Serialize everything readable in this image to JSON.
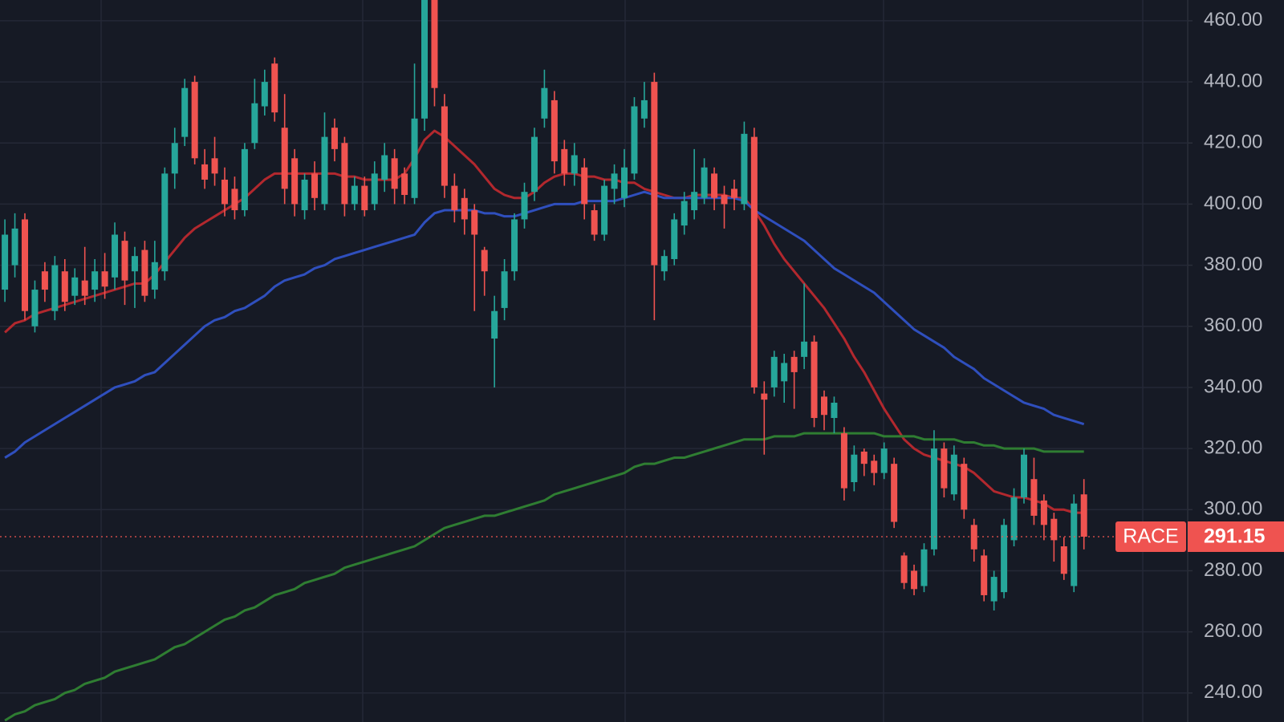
{
  "chart_data": {
    "type": "candlestick",
    "symbol": "RACE",
    "up_color": "#26a69a",
    "down_color": "#ef5350",
    "grid": true,
    "ylim": [
      230.5,
      466.8
    ],
    "yticks": [
      {
        "value": 240,
        "label": "240.00"
      },
      {
        "value": 260,
        "label": "260.00"
      },
      {
        "value": 280,
        "label": "280.00"
      },
      {
        "value": 300,
        "label": "300.00"
      },
      {
        "value": 320,
        "label": "320.00"
      },
      {
        "value": 340,
        "label": "340.00"
      },
      {
        "value": 360,
        "label": "360.00"
      },
      {
        "value": 380,
        "label": "380.00"
      },
      {
        "value": 400,
        "label": "400.00"
      },
      {
        "value": 420,
        "label": "420.00"
      },
      {
        "value": 440,
        "label": "440.00"
      },
      {
        "value": 460,
        "label": "460.00"
      }
    ],
    "open": [
      372,
      380,
      395,
      360,
      378,
      365,
      378,
      370,
      375,
      372,
      378,
      376,
      388,
      378,
      385,
      372,
      378,
      410,
      422,
      440,
      413,
      415,
      408,
      405,
      398,
      420,
      432,
      446,
      425,
      415,
      398,
      410,
      400,
      425,
      420,
      400,
      406,
      400,
      408,
      415,
      410,
      402,
      428,
      470,
      432,
      406,
      402,
      398,
      385,
      356,
      366,
      378,
      395,
      404,
      428,
      434,
      418,
      410,
      412,
      398,
      390,
      405,
      402,
      410,
      428,
      440,
      378,
      382,
      393,
      398,
      402,
      410,
      403,
      405,
      400,
      422,
      338,
      340,
      342,
      350,
      350,
      355,
      337,
      330,
      325,
      309,
      319,
      316,
      312,
      315,
      285,
      280,
      275,
      287,
      320,
      305,
      315,
      295,
      285,
      270,
      273,
      290,
      304,
      310,
      303,
      297,
      288,
      275,
      305
    ],
    "high": [
      395,
      397,
      397,
      375,
      381,
      383,
      382,
      379,
      386,
      382,
      384,
      394,
      391,
      386,
      388,
      388,
      412,
      425,
      441,
      442,
      418,
      422,
      412,
      409,
      420,
      441,
      444,
      448,
      436,
      418,
      410,
      414,
      430,
      428,
      422,
      409,
      409,
      414,
      420,
      418,
      412,
      446,
      472,
      472,
      436,
      410,
      405,
      400,
      386,
      370,
      382,
      397,
      407,
      425,
      444,
      437,
      421,
      420,
      415,
      400,
      408,
      413,
      418,
      435,
      440,
      443,
      385,
      397,
      404,
      418,
      415,
      412,
      406,
      408,
      427,
      425,
      342,
      352,
      351,
      352,
      374,
      357,
      339,
      337,
      327,
      321,
      320,
      318,
      322,
      317,
      286,
      282,
      289,
      326,
      322,
      321,
      317,
      297,
      287,
      280,
      297,
      307,
      320,
      317,
      305,
      299,
      291,
      305,
      310
    ],
    "low": [
      368,
      376,
      362,
      358,
      368,
      362,
      365,
      367,
      367,
      368,
      369,
      372,
      367,
      366,
      368,
      369,
      375,
      405,
      419,
      413,
      405,
      406,
      396,
      395,
      396,
      418,
      429,
      427,
      400,
      396,
      395,
      398,
      398,
      414,
      396,
      398,
      396,
      398,
      404,
      400,
      400,
      400,
      424,
      432,
      402,
      394,
      390,
      365,
      370,
      340,
      362,
      375,
      392,
      401,
      425,
      410,
      406,
      406,
      395,
      388,
      388,
      400,
      399,
      408,
      425,
      362,
      375,
      380,
      390,
      395,
      400,
      398,
      392,
      398,
      398,
      338,
      318,
      337,
      335,
      333,
      346,
      327,
      326,
      325,
      303,
      306,
      311,
      308,
      310,
      294,
      274,
      272,
      273,
      285,
      304,
      303,
      297,
      283,
      270,
      267,
      271,
      288,
      302,
      295,
      290,
      283,
      277,
      273,
      287
    ],
    "close": [
      390,
      392,
      365,
      372,
      372,
      380,
      368,
      376,
      370,
      378,
      373,
      390,
      375,
      383,
      370,
      381,
      410,
      420,
      438,
      415,
      408,
      410,
      400,
      398,
      418,
      433,
      440,
      430,
      405,
      400,
      408,
      402,
      422,
      418,
      400,
      406,
      398,
      410,
      416,
      405,
      403,
      428,
      470,
      438,
      406,
      398,
      395,
      390,
      378,
      365,
      378,
      395,
      404,
      422,
      438,
      414,
      410,
      416,
      400,
      390,
      406,
      410,
      412,
      432,
      434,
      380,
      383,
      395,
      401,
      404,
      412,
      402,
      400,
      402,
      423,
      340,
      336,
      350,
      348,
      345,
      355,
      330,
      331,
      335,
      307,
      318,
      315,
      312,
      320,
      296,
      276,
      274,
      287,
      320,
      307,
      318,
      300,
      287,
      272,
      278,
      295,
      304,
      318,
      298,
      295,
      290,
      279,
      302,
      291.15
    ],
    "series": [
      {
        "color": "#b2282e",
        "values": [
          358,
          361,
          362,
          364,
          365,
          366,
          367,
          368,
          369,
          370,
          371,
          372,
          373,
          374,
          374,
          377,
          381,
          385,
          389,
          392,
          394,
          396,
          398,
          400,
          402,
          405,
          408,
          410,
          410,
          410,
          410,
          410,
          410,
          410,
          409,
          409,
          408,
          408,
          408,
          408,
          410,
          415,
          421,
          424,
          422,
          419,
          416,
          413,
          409,
          405,
          403,
          402,
          402,
          404,
          407,
          409,
          410,
          410,
          409,
          409,
          408,
          408,
          407,
          407,
          405,
          404,
          403,
          402,
          402,
          403,
          403,
          403,
          403,
          402,
          402,
          398,
          393,
          387,
          382,
          378,
          374,
          370,
          366,
          361,
          356,
          350,
          345,
          339,
          333,
          328,
          323,
          320,
          318,
          317,
          316,
          315,
          314,
          312,
          309,
          306,
          305,
          304,
          304,
          303,
          302,
          300,
          300,
          299,
          299
        ]
      },
      {
        "color": "#2f4fbd",
        "values": [
          317,
          319,
          322,
          324,
          326,
          328,
          330,
          332,
          334,
          336,
          338,
          340,
          341,
          342,
          344,
          345,
          348,
          351,
          354,
          357,
          360,
          362,
          363,
          365,
          366,
          368,
          370,
          373,
          375,
          376,
          377,
          379,
          380,
          382,
          383,
          384,
          385,
          386,
          387,
          388,
          389,
          390,
          394,
          397,
          398,
          398,
          398,
          398,
          397,
          397,
          396,
          396,
          397,
          398,
          399,
          400,
          400,
          400,
          401,
          401,
          401,
          401,
          402,
          403,
          404,
          403,
          402,
          402,
          402,
          402,
          402,
          402,
          402,
          402,
          401,
          398,
          396,
          394,
          392,
          390,
          388,
          385,
          382,
          379,
          377,
          375,
          373,
          371,
          368,
          365,
          362,
          359,
          357,
          355,
          353,
          350,
          348,
          346,
          343,
          341,
          339,
          337,
          335,
          334,
          333,
          331,
          330,
          329,
          328
        ]
      },
      {
        "color": "#2f7d32",
        "values": [
          231,
          233,
          234,
          236,
          237,
          238,
          240,
          241,
          243,
          244,
          245,
          247,
          248,
          249,
          250,
          251,
          253,
          255,
          256,
          258,
          260,
          262,
          264,
          265,
          267,
          268,
          270,
          272,
          273,
          274,
          276,
          277,
          278,
          279,
          281,
          282,
          283,
          284,
          285,
          286,
          287,
          288,
          290,
          292,
          294,
          295,
          296,
          297,
          298,
          298,
          299,
          300,
          301,
          302,
          303,
          305,
          306,
          307,
          308,
          309,
          310,
          311,
          312,
          314,
          315,
          315,
          316,
          317,
          317,
          318,
          319,
          320,
          321,
          322,
          323,
          323,
          323,
          324,
          324,
          324,
          325,
          325,
          325,
          325,
          325,
          325,
          325,
          325,
          324,
          324,
          324,
          324,
          323,
          323,
          323,
          323,
          322,
          322,
          321,
          321,
          320,
          320,
          320,
          320,
          319,
          319,
          319,
          319,
          319
        ]
      }
    ]
  }
}
